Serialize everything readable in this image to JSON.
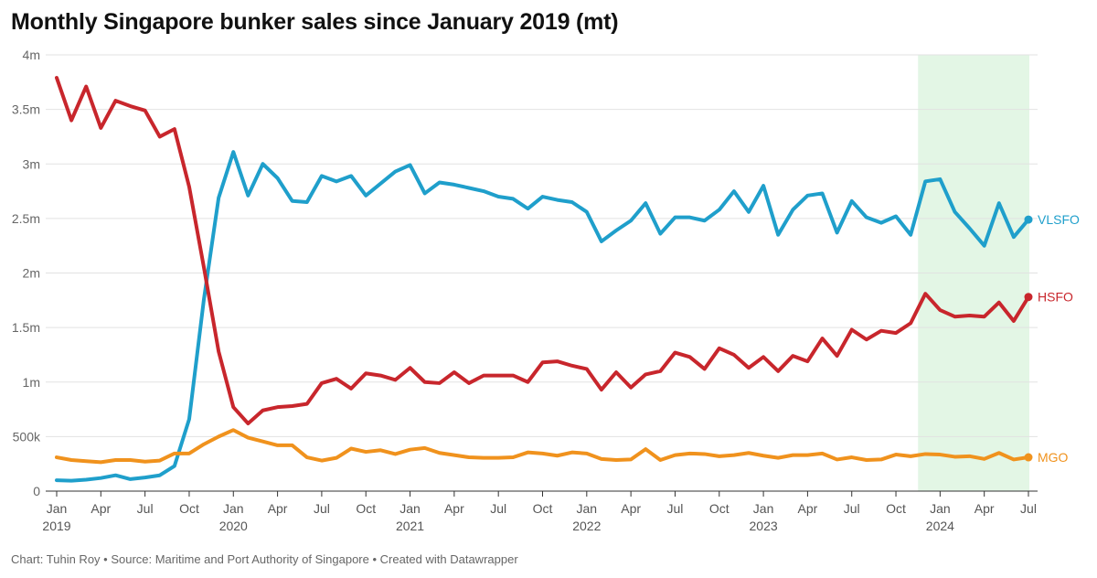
{
  "title": "Monthly Singapore bunker sales since January 2019 (mt)",
  "footer": "Chart: Tuhin Roy • Source: Maritime and Port Authority of Singapore • Created with Datawrapper",
  "chart_data": {
    "type": "line",
    "title": "Monthly Singapore bunker sales since January 2019 (mt)",
    "x_start": "2019-01",
    "x_end": "2024-07",
    "ylim": [
      0,
      4000000
    ],
    "y_ticks": [
      {
        "value": 0,
        "label": "0"
      },
      {
        "value": 500000,
        "label": "500k"
      },
      {
        "value": 1000000,
        "label": "1m"
      },
      {
        "value": 1500000,
        "label": "1.5m"
      },
      {
        "value": 2000000,
        "label": "2m"
      },
      {
        "value": 2500000,
        "label": "2.5m"
      },
      {
        "value": 3000000,
        "label": "3m"
      },
      {
        "value": 3500000,
        "label": "3.5m"
      },
      {
        "value": 4000000,
        "label": "4m"
      }
    ],
    "x_ticks": [
      {
        "date": "2019-01",
        "label": "Jan",
        "year": "2019"
      },
      {
        "date": "2019-04",
        "label": "Apr"
      },
      {
        "date": "2019-07",
        "label": "Jul"
      },
      {
        "date": "2019-10",
        "label": "Oct"
      },
      {
        "date": "2020-01",
        "label": "Jan",
        "year": "2020"
      },
      {
        "date": "2020-04",
        "label": "Apr"
      },
      {
        "date": "2020-07",
        "label": "Jul"
      },
      {
        "date": "2020-10",
        "label": "Oct"
      },
      {
        "date": "2021-01",
        "label": "Jan",
        "year": "2021"
      },
      {
        "date": "2021-04",
        "label": "Apr"
      },
      {
        "date": "2021-07",
        "label": "Jul"
      },
      {
        "date": "2021-10",
        "label": "Oct"
      },
      {
        "date": "2022-01",
        "label": "Jan",
        "year": "2022"
      },
      {
        "date": "2022-04",
        "label": "Apr"
      },
      {
        "date": "2022-07",
        "label": "Jul"
      },
      {
        "date": "2022-10",
        "label": "Oct"
      },
      {
        "date": "2023-01",
        "label": "Jan",
        "year": "2023"
      },
      {
        "date": "2023-04",
        "label": "Apr"
      },
      {
        "date": "2023-07",
        "label": "Jul"
      },
      {
        "date": "2023-10",
        "label": "Oct"
      },
      {
        "date": "2024-01",
        "label": "Jan",
        "year": "2024"
      },
      {
        "date": "2024-04",
        "label": "Apr"
      },
      {
        "date": "2024-07",
        "label": "Jul"
      }
    ],
    "highlight_range": {
      "start": "2023-12",
      "end": "2024-07",
      "color": "#e3f6e5"
    },
    "grid": true,
    "legend": "end-of-line labels",
    "series": [
      {
        "name": "VLSFO",
        "color": "#1f9fcb",
        "values": [
          100000,
          95000,
          105000,
          120000,
          145000,
          110000,
          125000,
          145000,
          230000,
          660000,
          1760000,
          2690000,
          3110000,
          2710000,
          3000000,
          2870000,
          2660000,
          2650000,
          2890000,
          2840000,
          2890000,
          2710000,
          2820000,
          2930000,
          2990000,
          2730000,
          2830000,
          2810000,
          2780000,
          2750000,
          2700000,
          2680000,
          2590000,
          2700000,
          2670000,
          2650000,
          2560000,
          2290000,
          2390000,
          2480000,
          2640000,
          2360000,
          2510000,
          2510000,
          2480000,
          2580000,
          2750000,
          2560000,
          2800000,
          2350000,
          2580000,
          2710000,
          2730000,
          2370000,
          2660000,
          2510000,
          2460000,
          2520000,
          2350000,
          2840000,
          2860000,
          2560000,
          2410000,
          2250000,
          2640000,
          2330000,
          2490000
        ]
      },
      {
        "name": "HSFO",
        "color": "#c8262c",
        "values": [
          3790000,
          3400000,
          3710000,
          3330000,
          3580000,
          3530000,
          3490000,
          3250000,
          3320000,
          2790000,
          2050000,
          1280000,
          770000,
          620000,
          740000,
          770000,
          780000,
          800000,
          990000,
          1030000,
          940000,
          1080000,
          1060000,
          1020000,
          1130000,
          1000000,
          990000,
          1090000,
          990000,
          1060000,
          1060000,
          1060000,
          1000000,
          1180000,
          1190000,
          1150000,
          1120000,
          930000,
          1090000,
          950000,
          1070000,
          1100000,
          1270000,
          1230000,
          1120000,
          1310000,
          1250000,
          1130000,
          1230000,
          1100000,
          1240000,
          1190000,
          1400000,
          1240000,
          1480000,
          1390000,
          1470000,
          1450000,
          1540000,
          1810000,
          1660000,
          1600000,
          1610000,
          1600000,
          1730000,
          1560000,
          1780000
        ]
      },
      {
        "name": "MGO",
        "color": "#f0921d",
        "values": [
          310000,
          285000,
          275000,
          265000,
          285000,
          285000,
          270000,
          280000,
          345000,
          345000,
          430000,
          500000,
          560000,
          490000,
          455000,
          420000,
          420000,
          310000,
          280000,
          305000,
          390000,
          360000,
          375000,
          340000,
          380000,
          395000,
          350000,
          330000,
          310000,
          305000,
          305000,
          310000,
          355000,
          345000,
          325000,
          355000,
          345000,
          295000,
          285000,
          290000,
          385000,
          285000,
          330000,
          345000,
          340000,
          320000,
          330000,
          350000,
          325000,
          305000,
          330000,
          330000,
          345000,
          290000,
          310000,
          285000,
          290000,
          335000,
          320000,
          340000,
          335000,
          315000,
          320000,
          295000,
          350000,
          290000,
          310000
        ]
      }
    ]
  }
}
